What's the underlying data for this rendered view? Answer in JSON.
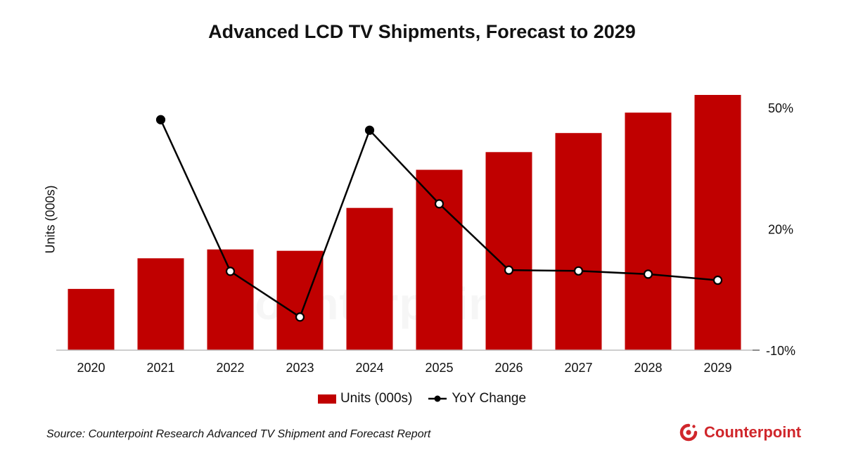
{
  "chart_data": {
    "type": "bar",
    "title": "Advanced LCD TV Shipments, Forecast to 2029",
    "categories": [
      "2020",
      "2021",
      "2022",
      "2023",
      "2024",
      "2025",
      "2026",
      "2027",
      "2028",
      "2029"
    ],
    "ylabel": "Units (000s)",
    "y2_ticks": [
      "50%",
      "20%",
      "-10%"
    ],
    "y2lim": [
      -10,
      50
    ],
    "series": [
      {
        "name": "Units (000s)",
        "type": "bar",
        "axis": "left",
        "color": "#c00000",
        "values": [
          9,
          13.5,
          14.8,
          14.6,
          20.9,
          26.5,
          29.1,
          31.9,
          34.9,
          37.5
        ]
      },
      {
        "name": "YoY Change",
        "type": "line",
        "axis": "right",
        "color": "#000000",
        "values": [
          null,
          47,
          9.5,
          -1.8,
          44.4,
          26.2,
          9.8,
          9.6,
          8.8,
          7.3
        ]
      }
    ],
    "legend_position": "bottom",
    "grid": false
  },
  "source": "Source: Counterpoint Research Advanced TV Shipment and Forecast Report",
  "logo_text": "Counterpoint",
  "watermark_text": "Counterpoint"
}
